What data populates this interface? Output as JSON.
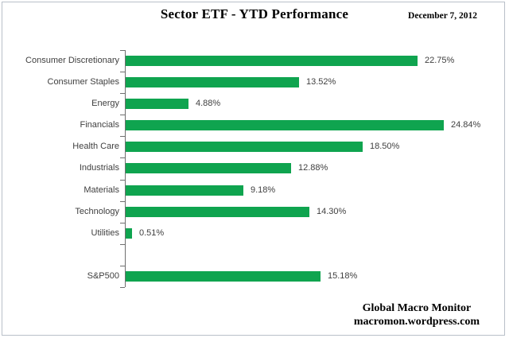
{
  "header": {
    "title": "Sector ETF - YTD Performance",
    "date": "December 7, 2012"
  },
  "footer": {
    "line1": "Global Macro Monitor",
    "line2": "macromon.wordpress.com"
  },
  "chart_data": {
    "type": "bar",
    "orientation": "horizontal",
    "title": "Sector ETF - YTD Performance",
    "categories": [
      "Consumer Discretionary",
      "Consumer Staples",
      "Energy",
      "Financials",
      "Health Care",
      "Industrials",
      "Materials",
      "Technology",
      "Utilities",
      "S&P500"
    ],
    "values": [
      22.75,
      13.52,
      4.88,
      24.84,
      18.5,
      12.88,
      9.18,
      14.3,
      0.51,
      15.18
    ],
    "data_labels": [
      "22.75%",
      "13.52%",
      "4.88%",
      "24.84%",
      "18.50%",
      "12.88%",
      "9.18%",
      "14.30%",
      "0.51%",
      "15.18%"
    ],
    "xlim": [
      0,
      25
    ],
    "grid": false,
    "legend": false,
    "separator_gap_before_last_category": true,
    "bar_color": "#0fa44f",
    "axis_color": "#6f6f6f",
    "text_color": "#3f3f3f"
  }
}
